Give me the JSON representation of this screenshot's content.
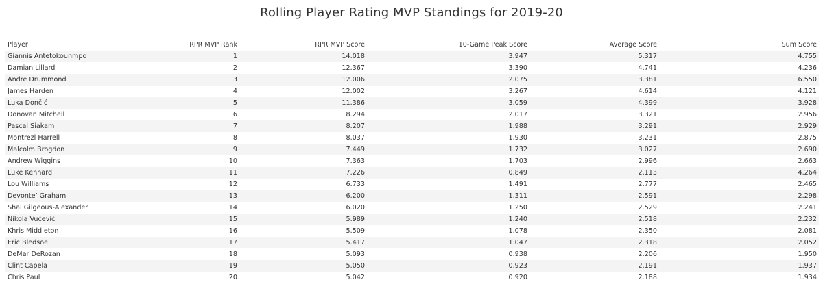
{
  "chart_data": {
    "type": "table",
    "title": "Rolling Player Rating MVP Standings for 2019-20",
    "columns": [
      "Player",
      "RPR MVP Rank",
      "RPR MVP Score",
      "10-Game Peak Score",
      "Average Score",
      "Sum Score"
    ],
    "rows": [
      [
        "Giannis Antetokounmpo",
        "1",
        "14.018",
        "3.947",
        "5.317",
        "4.755"
      ],
      [
        "Damian Lillard",
        "2",
        "12.367",
        "3.390",
        "4.741",
        "4.236"
      ],
      [
        "Andre Drummond",
        "3",
        "12.006",
        "2.075",
        "3.381",
        "6.550"
      ],
      [
        "James Harden",
        "4",
        "12.002",
        "3.267",
        "4.614",
        "4.121"
      ],
      [
        "Luka Dončić",
        "5",
        "11.386",
        "3.059",
        "4.399",
        "3.928"
      ],
      [
        "Donovan Mitchell",
        "6",
        "8.294",
        "2.017",
        "3.321",
        "2.956"
      ],
      [
        "Pascal Siakam",
        "7",
        "8.207",
        "1.988",
        "3.291",
        "2.929"
      ],
      [
        "Montrezl Harrell",
        "8",
        "8.037",
        "1.930",
        "3.231",
        "2.875"
      ],
      [
        "Malcolm Brogdon",
        "9",
        "7.449",
        "1.732",
        "3.027",
        "2.690"
      ],
      [
        "Andrew Wiggins",
        "10",
        "7.363",
        "1.703",
        "2.996",
        "2.663"
      ],
      [
        "Luke Kennard",
        "11",
        "7.226",
        "0.849",
        "2.113",
        "4.264"
      ],
      [
        "Lou Williams",
        "12",
        "6.733",
        "1.491",
        "2.777",
        "2.465"
      ],
      [
        "Devonte’ Graham",
        "13",
        "6.200",
        "1.311",
        "2.591",
        "2.298"
      ],
      [
        "Shai Gilgeous-Alexander",
        "14",
        "6.020",
        "1.250",
        "2.529",
        "2.241"
      ],
      [
        "Nikola Vučević",
        "15",
        "5.989",
        "1.240",
        "2.518",
        "2.232"
      ],
      [
        "Khris Middleton",
        "16",
        "5.509",
        "1.078",
        "2.350",
        "2.081"
      ],
      [
        "Eric Bledsoe",
        "17",
        "5.417",
        "1.047",
        "2.318",
        "2.052"
      ],
      [
        "DeMar DeRozan",
        "18",
        "5.093",
        "0.938",
        "2.206",
        "1.950"
      ],
      [
        "Clint Capela",
        "19",
        "5.050",
        "0.923",
        "2.191",
        "1.937"
      ],
      [
        "Chris Paul",
        "20",
        "5.042",
        "0.920",
        "2.188",
        "1.934"
      ]
    ]
  }
}
